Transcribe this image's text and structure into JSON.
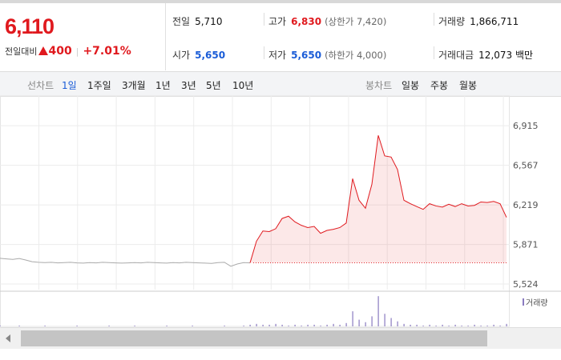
{
  "quote": {
    "price": "6,110",
    "change_label": "전일대비",
    "change": "400",
    "change_rate": "+7.01%"
  },
  "stats": [
    [
      {
        "label": "전일",
        "value": "5,710"
      },
      {
        "label": "고가",
        "value": "6,830",
        "note": "(상한가 7,420)"
      },
      {
        "label": "거래량",
        "value": "1,866,711"
      }
    ],
    [
      {
        "label": "시가",
        "value": "5,650"
      },
      {
        "label": "저가",
        "value": "5,650",
        "note": "(하한가 4,000)"
      },
      {
        "label": "거래대금",
        "value": "12,073 백만"
      }
    ]
  ],
  "toolbar": {
    "line_label": "선차트",
    "line_tabs": [
      "1일",
      "1주일",
      "3개월",
      "1년",
      "3년",
      "5년",
      "10년"
    ],
    "candle_label": "봉차트",
    "candle_tabs": [
      "일봉",
      "주봉",
      "월봉"
    ]
  },
  "chart_data": {
    "type": "line",
    "ylim": [
      5475,
      7120
    ],
    "yticks": [
      {
        "value": 6915,
        "label": "6,915"
      },
      {
        "value": 6567,
        "label": "6,567"
      },
      {
        "value": 6219,
        "label": "6,219"
      },
      {
        "value": 5871,
        "label": "5,871"
      },
      {
        "value": 5524,
        "label": "5,524"
      }
    ],
    "grid": true,
    "baseline": 5710,
    "series": [
      {
        "color": "#aaaaaa",
        "values": [
          5750,
          5745,
          5740,
          5748,
          5735,
          5720,
          5715,
          5712,
          5715,
          5710,
          5712,
          5715,
          5710,
          5708,
          5712,
          5710,
          5715,
          5712,
          5710,
          5708,
          5710,
          5712,
          5710,
          5715,
          5712,
          5710,
          5708,
          5712,
          5710,
          5715,
          5712,
          5710,
          5708,
          5705,
          5712,
          5715,
          5680,
          5700,
          5712,
          5710,
          null,
          null,
          null,
          null,
          null,
          null,
          null,
          null,
          null,
          null,
          null,
          null,
          null,
          null,
          null,
          null,
          null,
          null,
          null,
          null,
          null,
          null,
          null,
          null,
          null,
          null,
          null,
          null,
          null,
          null,
          null,
          null,
          null,
          null,
          null,
          null,
          null,
          null,
          null,
          null
        ]
      },
      {
        "color": "#e0191e",
        "values": [
          null,
          null,
          null,
          null,
          null,
          null,
          null,
          null,
          null,
          null,
          null,
          null,
          null,
          null,
          null,
          null,
          null,
          null,
          null,
          null,
          null,
          null,
          null,
          null,
          null,
          null,
          null,
          null,
          null,
          null,
          null,
          null,
          null,
          null,
          null,
          null,
          null,
          null,
          null,
          5710,
          5900,
          5990,
          5985,
          6010,
          6100,
          6120,
          6070,
          6040,
          6020,
          6030,
          5970,
          5995,
          6005,
          6020,
          6060,
          6450,
          6260,
          6190,
          6400,
          6830,
          6650,
          6640,
          6530,
          6260,
          6230,
          6205,
          6180,
          6230,
          6210,
          6200,
          6225,
          6205,
          6230,
          6210,
          6215,
          6245,
          6240,
          6250,
          6230,
          6110
        ]
      }
    ],
    "volume": {
      "label": "거래량",
      "color": "#8a7bc0",
      "ylim": [
        0,
        40
      ],
      "values": [
        1,
        0,
        0,
        1,
        0,
        0,
        0,
        1,
        0,
        0,
        0,
        0,
        1,
        0,
        0,
        0,
        0,
        1,
        0,
        0,
        0,
        1,
        0,
        0,
        0,
        0,
        1,
        0,
        0,
        0,
        1,
        0,
        0,
        0,
        0,
        1,
        0,
        0,
        1,
        2,
        3,
        2,
        2,
        3,
        2,
        1,
        2,
        1,
        2,
        2,
        1,
        2,
        3,
        2,
        4,
        18,
        8,
        5,
        12,
        36,
        15,
        10,
        6,
        3,
        2,
        2,
        1,
        2,
        1,
        2,
        1,
        2,
        1,
        1,
        2,
        1,
        1,
        2,
        1,
        3
      ]
    }
  }
}
